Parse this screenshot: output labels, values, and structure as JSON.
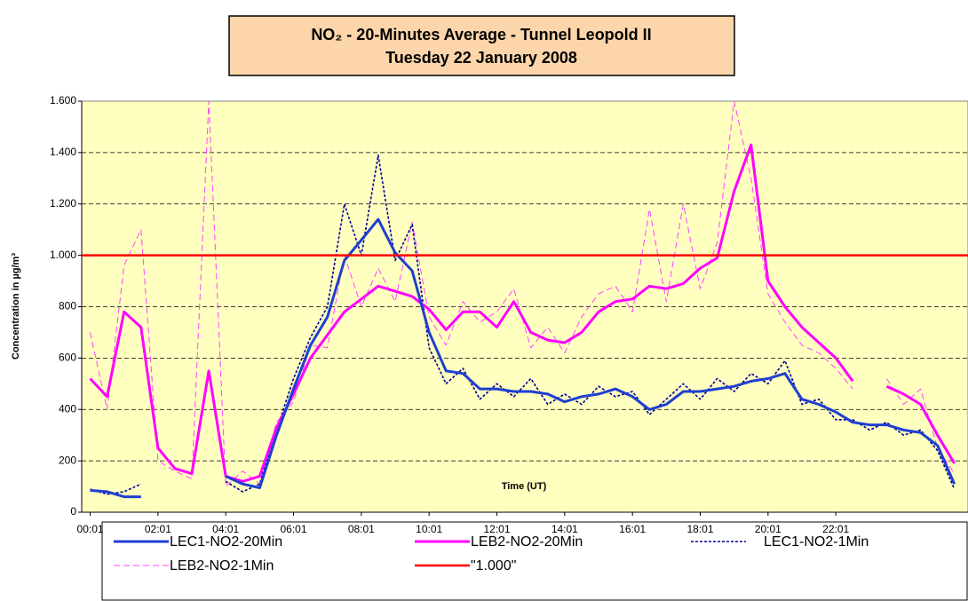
{
  "chart_data": {
    "type": "line",
    "title": "NO₂ - 20-Minutes Average - Tunnel Leopold II",
    "subtitle": "Tuesday 22 January 2008",
    "x_label": "Time (UT)",
    "y_label": "Concentration in µg/m³",
    "xlim": [
      -0.25,
      25.9
    ],
    "xticks": [
      {
        "value": 0,
        "label": "00:01"
      },
      {
        "value": 2,
        "label": "02:01"
      },
      {
        "value": 4,
        "label": "04:01"
      },
      {
        "value": 6,
        "label": "06:01"
      },
      {
        "value": 8,
        "label": "08:01"
      },
      {
        "value": 10,
        "label": "10:01"
      },
      {
        "value": 12,
        "label": "12:01"
      },
      {
        "value": 14,
        "label": "14:01"
      },
      {
        "value": 16,
        "label": "16:01"
      },
      {
        "value": 18,
        "label": "18:01"
      },
      {
        "value": 20,
        "label": "20:01"
      },
      {
        "value": 22,
        "label": "22:01"
      }
    ],
    "ylim": [
      0,
      1600
    ],
    "yticks": [
      0,
      200,
      400,
      600,
      800,
      {
        "value": 1000,
        "label": "1.000"
      },
      {
        "value": 1200,
        "label": "1.200"
      },
      {
        "value": 1400,
        "label": "1.400"
      },
      {
        "value": 1600,
        "label": "1.600"
      }
    ],
    "grid": true,
    "legend": "bottom",
    "plot_background": "#ffffc0",
    "title_background": "#fcd5aa",
    "x": [
      0,
      0.5,
      1,
      1.5,
      2,
      2.5,
      3,
      3.5,
      4,
      4.5,
      5,
      5.5,
      6,
      6.5,
      7,
      7.5,
      8,
      8.5,
      9,
      9.5,
      10,
      10.5,
      11,
      11.5,
      12,
      12.5,
      13,
      13.5,
      14,
      14.5,
      15,
      15.5,
      16,
      16.5,
      17,
      17.5,
      18,
      18.5,
      19,
      19.5,
      20,
      20.5,
      21,
      21.5,
      22,
      22.5,
      23,
      23.5,
      24,
      24.5,
      25,
      25.5
    ],
    "series": [
      {
        "name": "LEC1-NO2-20Min",
        "color": "#1f3fd0",
        "line_style": "solid",
        "values": [
          85,
          80,
          60,
          60,
          null,
          null,
          null,
          null,
          140,
          110,
          95,
          300,
          480,
          650,
          760,
          980,
          1060,
          1140,
          1010,
          940,
          700,
          550,
          540,
          480,
          480,
          470,
          470,
          460,
          430,
          450,
          460,
          480,
          450,
          400,
          420,
          470,
          470,
          480,
          490,
          510,
          520,
          540,
          440,
          420,
          390,
          350,
          340,
          340,
          320,
          310,
          260,
          110
        ]
      },
      {
        "name": "LEB2-NO2-20Min",
        "color": "#ff00ff",
        "line_style": "solid",
        "values": [
          520,
          450,
          780,
          720,
          250,
          170,
          150,
          550,
          140,
          120,
          140,
          330,
          460,
          600,
          690,
          780,
          830,
          880,
          860,
          840,
          790,
          710,
          780,
          780,
          720,
          820,
          700,
          670,
          660,
          700,
          780,
          820,
          830,
          880,
          870,
          890,
          950,
          990,
          1250,
          1430,
          900,
          800,
          720,
          660,
          600,
          510,
          null,
          490,
          460,
          420,
          300,
          190
        ]
      },
      {
        "name": "LEC1-NO2-1Min",
        "color": "#000099",
        "line_style": "dotted",
        "values": [
          90,
          70,
          80,
          110,
          null,
          null,
          null,
          null,
          120,
          80,
          110,
          320,
          520,
          680,
          800,
          1200,
          1000,
          1390,
          980,
          1120,
          640,
          500,
          560,
          440,
          500,
          450,
          520,
          420,
          460,
          420,
          490,
          450,
          470,
          380,
          440,
          500,
          440,
          520,
          470,
          540,
          500,
          590,
          420,
          440,
          360,
          360,
          320,
          350,
          300,
          320,
          240,
          90
        ]
      },
      {
        "name": "LEB2-NO2-1Min",
        "color": "#ff44ff",
        "line_style": "dashed",
        "values": [
          700,
          400,
          960,
          1100,
          200,
          160,
          130,
          1600,
          100,
          160,
          110,
          350,
          430,
          650,
          640,
          1000,
          800,
          950,
          820,
          1130,
          760,
          650,
          820,
          740,
          780,
          870,
          640,
          720,
          620,
          760,
          850,
          880,
          780,
          1180,
          820,
          1200,
          870,
          1050,
          1600,
          1300,
          850,
          740,
          650,
          620,
          560,
          480,
          null,
          520,
          420,
          480,
          250,
          150
        ]
      },
      {
        "name": "\"1.000\"",
        "color": "#ff0000",
        "line_style": "solid",
        "x": [
          -0.25,
          25.9
        ],
        "values": [
          1000,
          1000
        ]
      }
    ]
  }
}
